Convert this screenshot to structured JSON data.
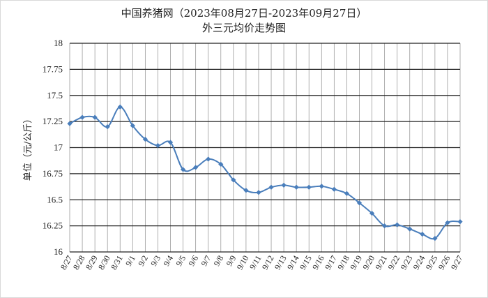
{
  "chart_data": {
    "type": "line",
    "title": "中国养猪网（2023年08月27日-2023年09月27日）",
    "subtitle": "外三元均价走势图",
    "ylabel": "单位（元/公斤）",
    "xlabel": "",
    "ylim": [
      16,
      18
    ],
    "y_ticks": [
      "18",
      "17.75",
      "17.5",
      "17.25",
      "17",
      "16.75",
      "16.5",
      "16.25",
      "16"
    ],
    "grid": true,
    "series_color": "#4a7ebb",
    "categories": [
      "8/27",
      "8/28",
      "8/29",
      "8/30",
      "8/31",
      "9/1",
      "9/2",
      "9/3",
      "9/4",
      "9/5",
      "9/6",
      "9/7",
      "9/8",
      "9/9",
      "9/10",
      "9/11",
      "9/12",
      "9/13",
      "9/14",
      "9/15",
      "9/16",
      "9/17",
      "9/18",
      "9/19",
      "9/20",
      "9/21",
      "9/22",
      "9/23",
      "9/24",
      "9/25",
      "9/26",
      "9/27"
    ],
    "series": [
      {
        "values": [
          17.23,
          17.29,
          17.29,
          17.2,
          17.39,
          17.21,
          17.08,
          17.02,
          17.05,
          16.79,
          16.81,
          16.89,
          16.84,
          16.69,
          16.59,
          16.57,
          16.62,
          16.64,
          16.62,
          16.62,
          16.63,
          16.6,
          16.56,
          16.47,
          16.37,
          16.25,
          16.26,
          16.22,
          16.17,
          16.13,
          16.28,
          16.29
        ]
      }
    ]
  }
}
